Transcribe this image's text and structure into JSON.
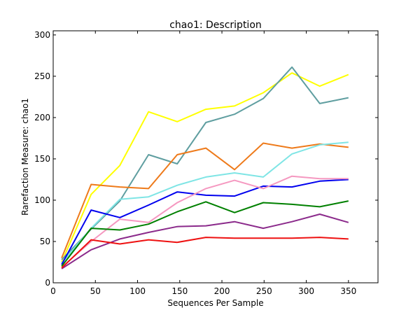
{
  "chart_data": {
    "type": "line",
    "title": "chao1: Description",
    "xlabel": "Sequences Per Sample",
    "ylabel": "Rarefaction Measure: chao1",
    "xlim": [
      0,
      385
    ],
    "ylim": [
      0,
      305
    ],
    "xticks": [
      0,
      50,
      100,
      150,
      200,
      250,
      300,
      350
    ],
    "yticks": [
      0,
      50,
      100,
      150,
      200,
      250,
      300
    ],
    "grid": false,
    "x": [
      10,
      45,
      79,
      113,
      147,
      181,
      215,
      249,
      283,
      316,
      350
    ],
    "series": [
      {
        "color": "#ffff00",
        "values": [
          25,
          107,
          142,
          207,
          195,
          210,
          214,
          230,
          254,
          238,
          252
        ]
      },
      {
        "color": "#5f9ea0",
        "values": [
          28,
          65,
          99,
          155,
          144,
          194,
          204,
          223,
          261,
          217,
          224
        ]
      },
      {
        "color": "#ee7a1a",
        "values": [
          30,
          119,
          116,
          114,
          155,
          163,
          137,
          169,
          163,
          168,
          164
        ]
      },
      {
        "color": "#7fe5e5",
        "values": [
          24,
          66,
          101,
          104,
          118,
          128,
          133,
          128,
          156,
          167,
          170
        ]
      },
      {
        "color": "#0000ee",
        "values": [
          22,
          88,
          79,
          94,
          110,
          106,
          105,
          117,
          116,
          123,
          125
        ]
      },
      {
        "color": "#f598c0",
        "values": [
          19,
          50,
          77,
          73,
          97,
          114,
          124,
          114,
          129,
          126,
          126
        ]
      },
      {
        "color": "#008000",
        "values": [
          20,
          66,
          64,
          71,
          86,
          98,
          85,
          97,
          95,
          92,
          99
        ]
      },
      {
        "color": "#8b2a8b",
        "values": [
          17,
          40,
          53,
          61,
          68,
          69,
          74,
          66,
          74,
          83,
          73
        ]
      },
      {
        "color": "#ee1111",
        "values": [
          18,
          52,
          47,
          52,
          49,
          55,
          54,
          54,
          54,
          55,
          53
        ]
      }
    ]
  }
}
